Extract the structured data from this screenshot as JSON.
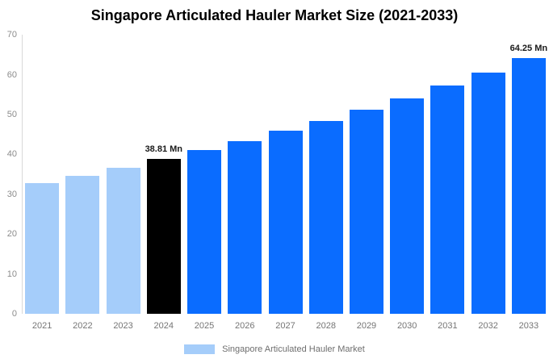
{
  "chart_data": {
    "type": "bar",
    "title": "Singapore Articulated Hauler Market Size (2021-2033)",
    "xlabel": "",
    "ylabel": "",
    "categories": [
      "2021",
      "2022",
      "2023",
      "2024",
      "2025",
      "2026",
      "2027",
      "2028",
      "2029",
      "2030",
      "2031",
      "2032",
      "2033"
    ],
    "series": [
      {
        "name": "Singapore Articulated Hauler Market",
        "values": [
          32.8,
          34.7,
          36.7,
          38.81,
          41.0,
          43.4,
          45.9,
          48.4,
          51.3,
          54.1,
          57.3,
          60.6,
          64.25
        ]
      }
    ],
    "bar_colors": [
      "#a5cdfa",
      "#a5cdfa",
      "#a5cdfa",
      "#000000",
      "#0a6cff",
      "#0a6cff",
      "#0a6cff",
      "#0a6cff",
      "#0a6cff",
      "#0a6cff",
      "#0a6cff",
      "#0a6cff",
      "#0a6cff"
    ],
    "annotations": [
      {
        "category": "2024",
        "text": "38.81 Mn"
      },
      {
        "category": "2033",
        "text": "64.25 Mn"
      }
    ],
    "yticks": [
      0,
      10,
      20,
      30,
      40,
      50,
      60,
      70
    ],
    "ylim": [
      0,
      70
    ],
    "grid": false,
    "legend_position": "bottom",
    "legend": {
      "label": "Singapore Articulated Hauler Market",
      "swatch_color": "#a5cdfa"
    },
    "colors": {
      "historical": "#a5cdfa",
      "base_year": "#000000",
      "forecast": "#0a6cff",
      "axis_line": "#d9d9d9",
      "tick_text": "#8c8c8c"
    }
  }
}
